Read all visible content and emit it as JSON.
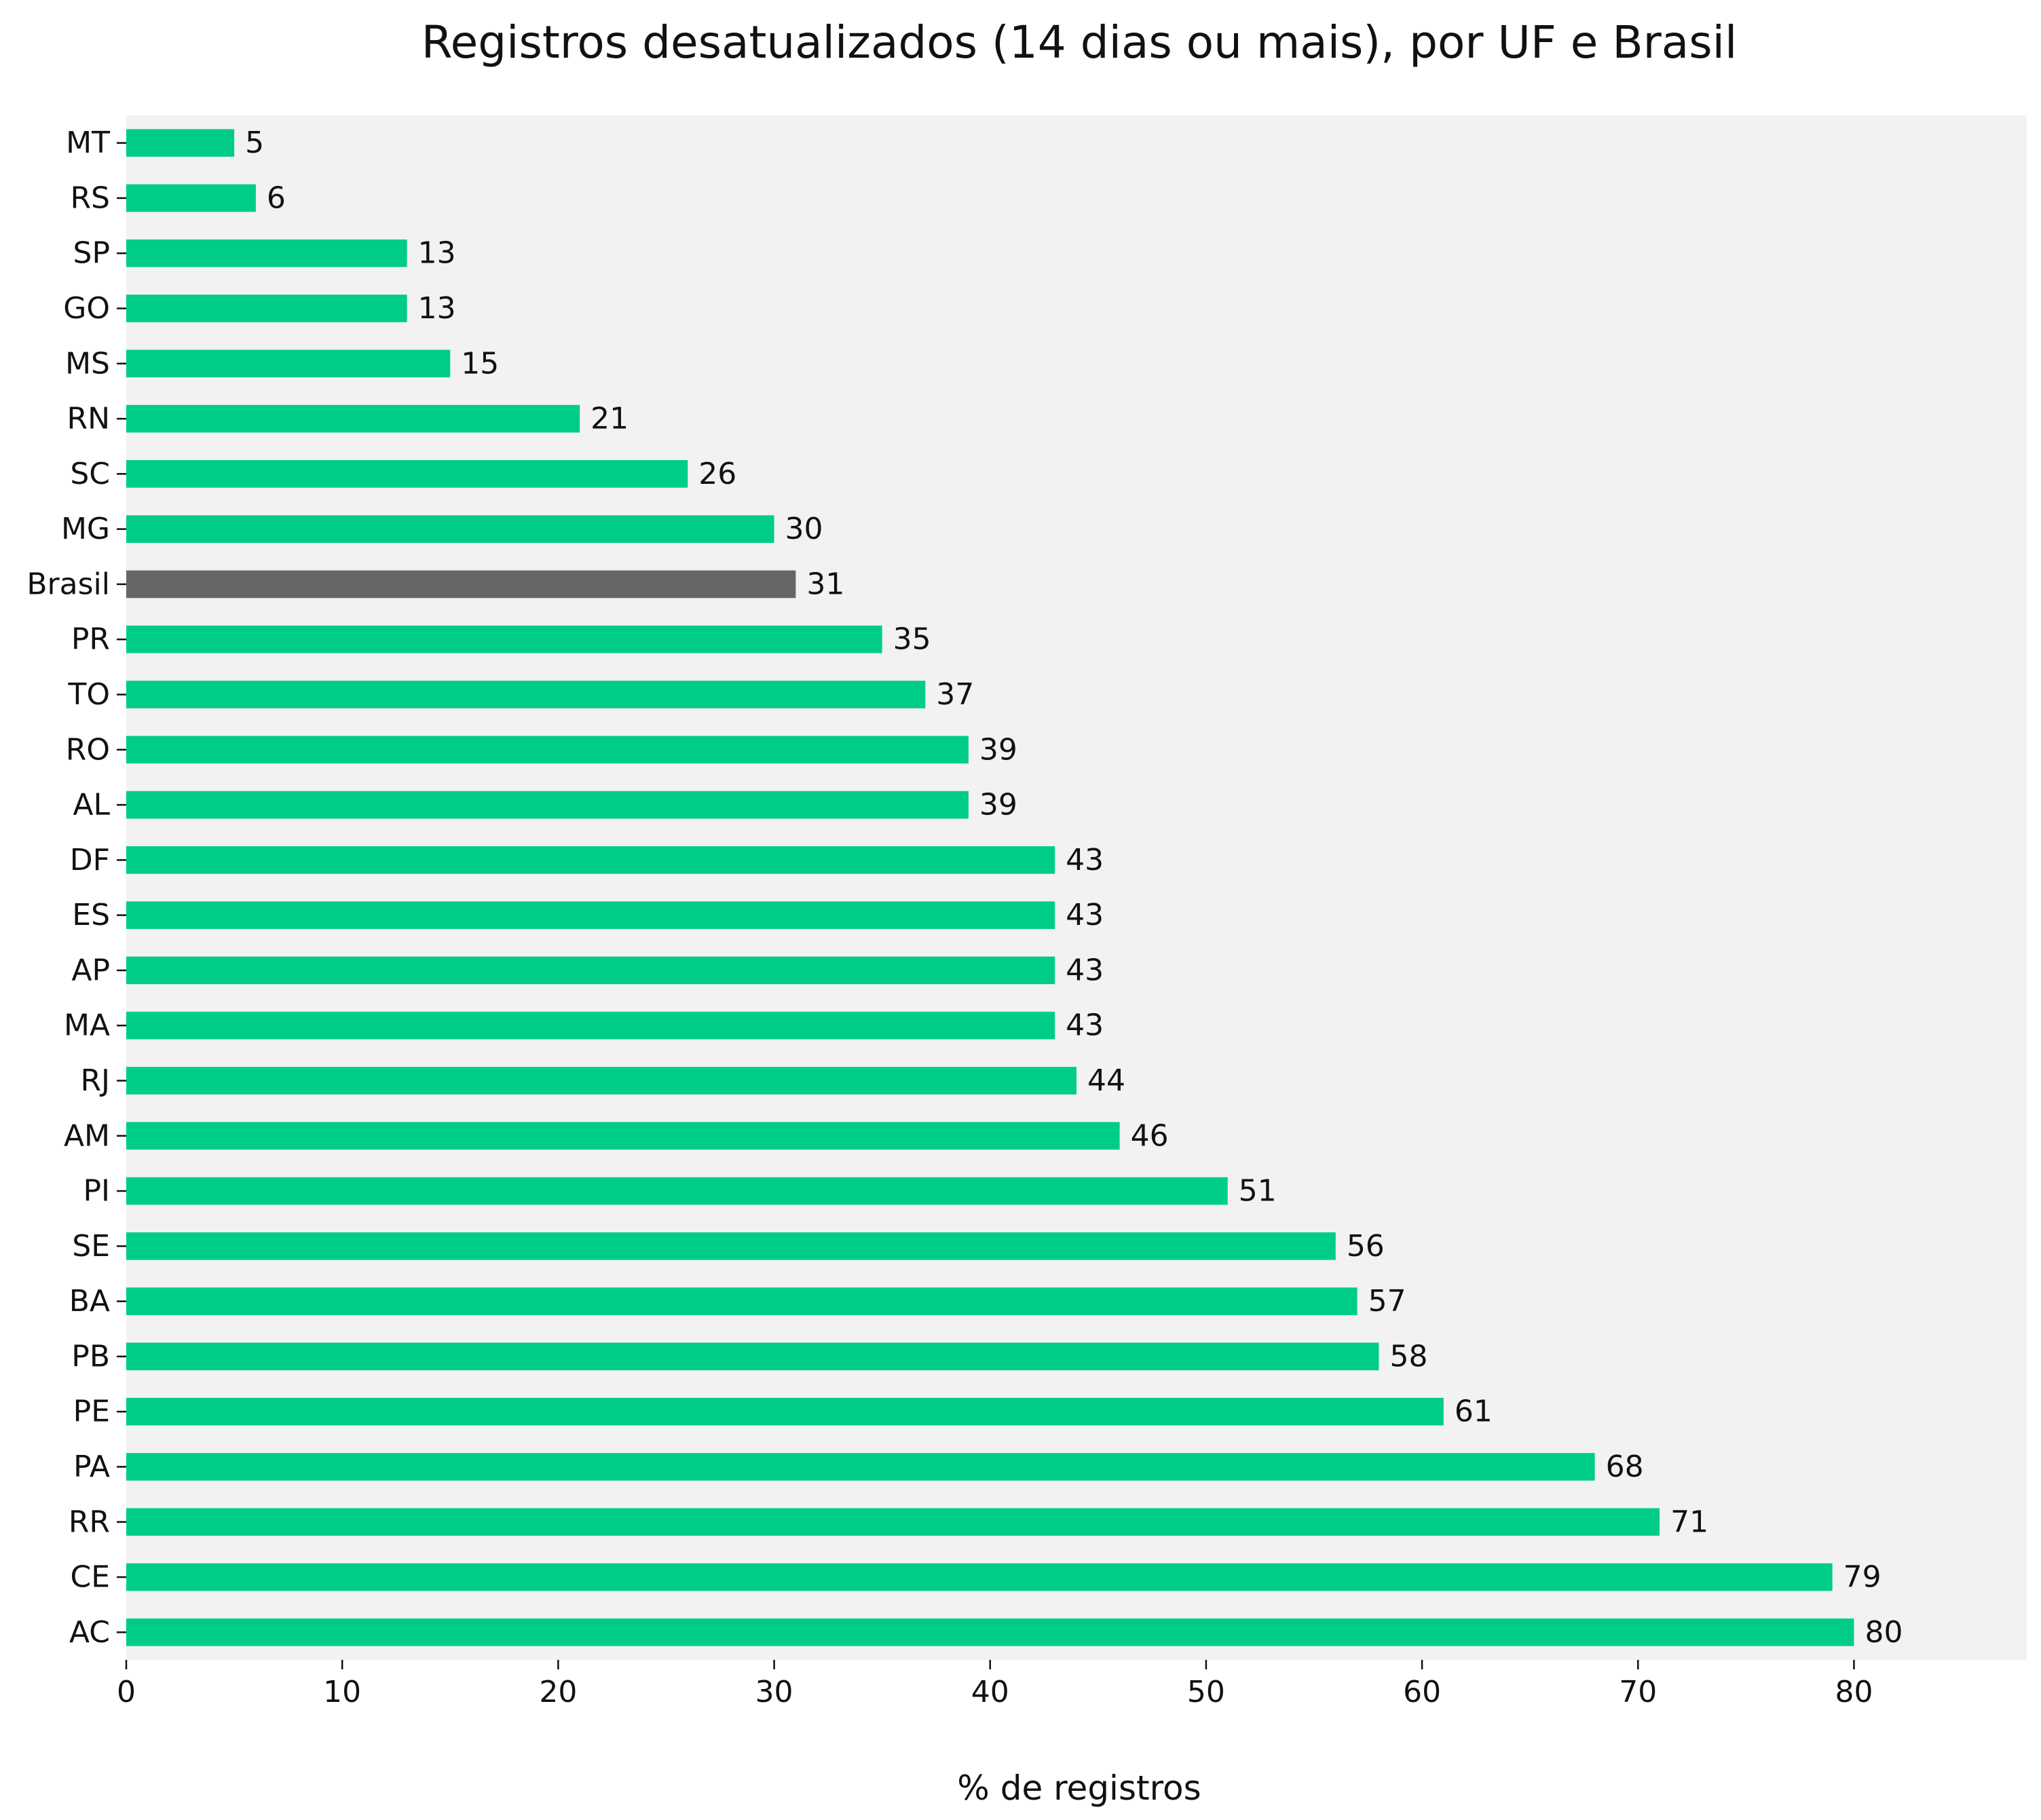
{
  "chart_data": {
    "type": "bar",
    "orientation": "horizontal",
    "title": "Registros desatualizados (14 dias ou mais), por UF e Brasil",
    "xlabel": "% de registros",
    "ylabel": "",
    "xlim": [
      0,
      88
    ],
    "xticks": [
      0,
      10,
      20,
      30,
      40,
      50,
      60,
      70,
      80
    ],
    "grid": false,
    "legend": "none",
    "colors": {
      "bar": "#00cc8a",
      "highlight": "#666666",
      "plot_background": "#f2f2f2"
    },
    "highlight_category": "Brasil",
    "categories": [
      "MT",
      "RS",
      "SP",
      "GO",
      "MS",
      "RN",
      "SC",
      "MG",
      "Brasil",
      "PR",
      "TO",
      "RO",
      "AL",
      "DF",
      "ES",
      "AP",
      "MA",
      "RJ",
      "AM",
      "PI",
      "SE",
      "BA",
      "PB",
      "PE",
      "PA",
      "RR",
      "CE",
      "AC"
    ],
    "values": [
      5,
      6,
      13,
      13,
      15,
      21,
      26,
      30,
      31,
      35,
      37,
      39,
      39,
      43,
      43,
      43,
      43,
      44,
      46,
      51,
      56,
      57,
      58,
      61,
      68,
      71,
      79,
      80
    ],
    "data_labels": [
      "5",
      "6",
      "13",
      "13",
      "15",
      "21",
      "26",
      "30",
      "31",
      "35",
      "37",
      "39",
      "39",
      "43",
      "43",
      "43",
      "43",
      "44",
      "46",
      "51",
      "56",
      "57",
      "58",
      "61",
      "68",
      "71",
      "79",
      "80"
    ]
  }
}
